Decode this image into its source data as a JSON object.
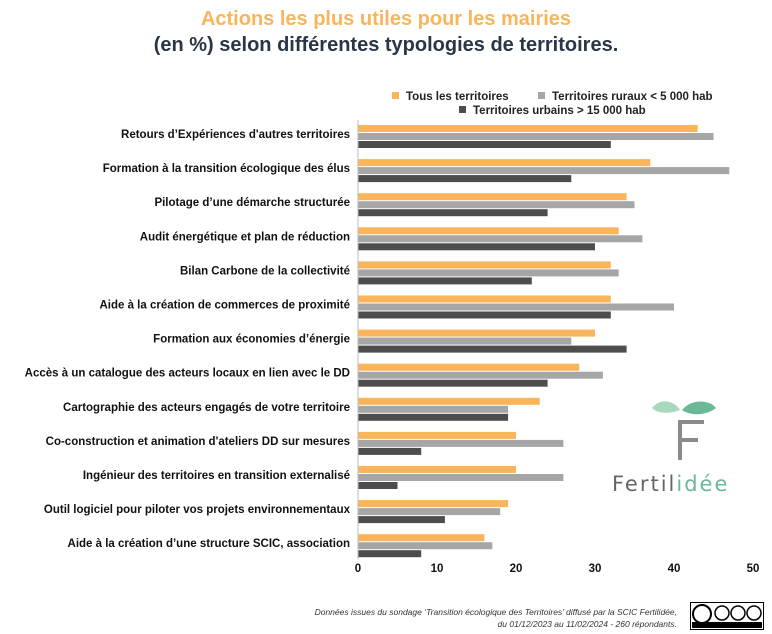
{
  "header": {
    "title_line1": "Actions les plus utiles pour les mairies",
    "title_line2": "(en %) selon différentes typologies de territoires."
  },
  "colors": {
    "title_accent": "#FAB55A",
    "title_dark": "#2A3547",
    "series_all": "#FAB55A",
    "series_rural": "#A6A6A6",
    "series_urban": "#4D4D4D",
    "logo_green": "#6DB897"
  },
  "chart_data": {
    "type": "bar",
    "orientation": "horizontal",
    "categories": [
      "Retours d’Expériences d'autres territoires",
      "Formation à la transition écologique des élus",
      "Pilotage d’une démarche structurée",
      "Audit énergétique et plan de réduction",
      "Bilan Carbone de la collectivité",
      "Aide à la création de commerces de proximité",
      "Formation aux économies d’énergie",
      "Accès à un catalogue des acteurs locaux en lien avec le DD",
      "Cartographie des acteurs engagés de votre territoire",
      "Co-construction et animation d'ateliers DD sur mesures",
      "Ingénieur des territoires en transition externalisé",
      "Outil logiciel pour piloter vos projets environnementaux",
      "Aide à la création d’une structure SCIC, association"
    ],
    "series": [
      {
        "name": "Tous les territoires",
        "color": "#FAB55A",
        "values": [
          43,
          37,
          34,
          33,
          32,
          32,
          30,
          28,
          23,
          20,
          20,
          19,
          16
        ]
      },
      {
        "name": "Territoires ruraux < 5 000 hab",
        "color": "#A6A6A6",
        "values": [
          45,
          47,
          35,
          36,
          33,
          40,
          27,
          31,
          19,
          26,
          26,
          18,
          17
        ]
      },
      {
        "name": "Territoires urbains > 15 000 hab",
        "color": "#4D4D4D",
        "values": [
          32,
          27,
          24,
          30,
          22,
          32,
          34,
          24,
          19,
          8,
          5,
          11,
          8
        ]
      }
    ],
    "xlim": [
      0,
      50
    ],
    "xticks": [
      0,
      10,
      20,
      30,
      40,
      50
    ],
    "grid": false,
    "legend_position": "top-right"
  },
  "branding": {
    "logo_text_main": "Fertil",
    "logo_text_accent": "idée",
    "logo_icon": "leaf-f-logo-icon",
    "license_icon": "cc-by-nc-sa-icon"
  },
  "footnote": {
    "line1": "Données issues du sondage ‘Transition écologique des Territoires’ diffusé par la SCIC Fertilidée,",
    "line2": "du 01/12/2023 au 11/02/2024 - 260 répondants."
  }
}
